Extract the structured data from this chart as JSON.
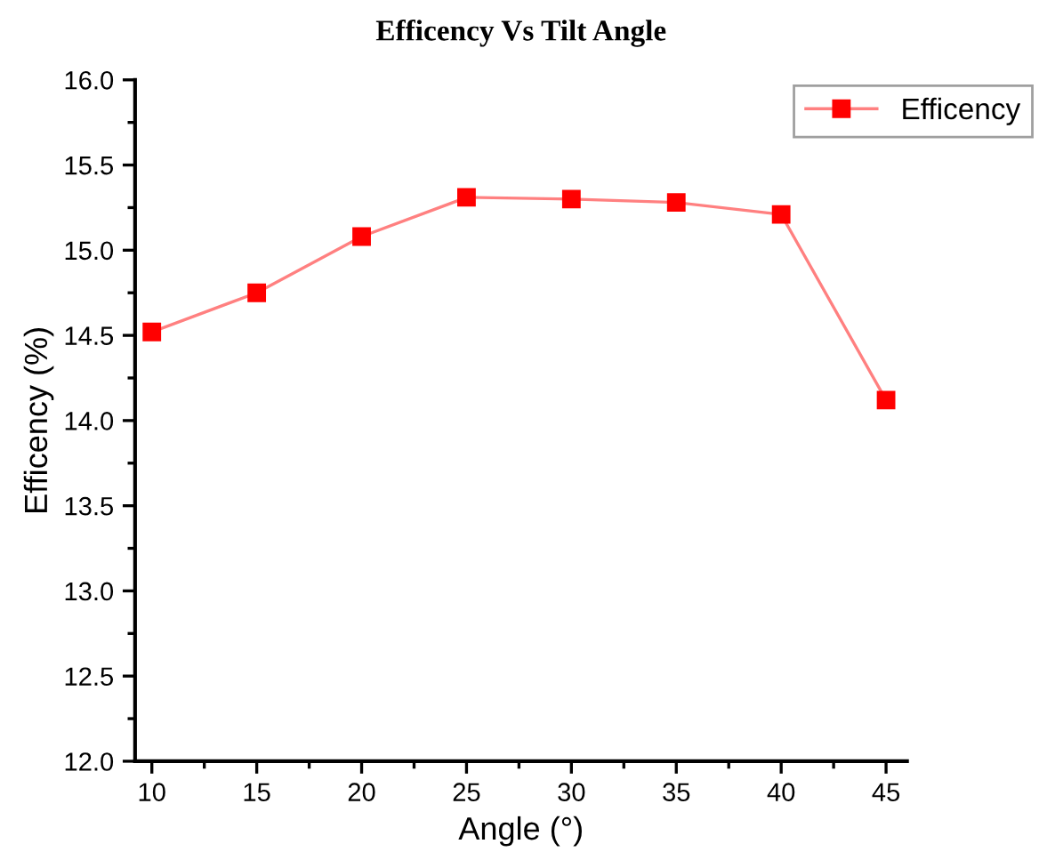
{
  "chart_data": {
    "type": "line",
    "title": "Efficency Vs Tilt Angle",
    "xlabel": "Angle (°)",
    "ylabel": "Efficency (%)",
    "x": [
      10,
      15,
      20,
      25,
      30,
      35,
      40,
      45
    ],
    "series": [
      {
        "name": "Efficency",
        "color": "#ff0000",
        "values": [
          14.52,
          14.75,
          15.08,
          15.31,
          15.3,
          15.28,
          15.21,
          14.12
        ]
      }
    ],
    "xlim": [
      9.2,
      46
    ],
    "xticks": [
      10,
      15,
      20,
      25,
      30,
      35,
      40,
      45
    ],
    "ylim": [
      12.0,
      16.0
    ],
    "yticks": [
      {
        "value": 12.0,
        "label": "12.0"
      },
      {
        "value": 12.5,
        "label": "12.5"
      },
      {
        "value": 13.0,
        "label": "13.0"
      },
      {
        "value": 13.5,
        "label": "13.5"
      },
      {
        "value": 14.0,
        "label": "14.0"
      },
      {
        "value": 14.5,
        "label": "14.5"
      },
      {
        "value": 15.0,
        "label": "15.0"
      },
      {
        "value": 15.5,
        "label": "15.5"
      },
      {
        "value": 16.0,
        "label": "16.0"
      }
    ],
    "grid": false,
    "legend": "top right",
    "marker": "square",
    "line_style": "solid"
  }
}
